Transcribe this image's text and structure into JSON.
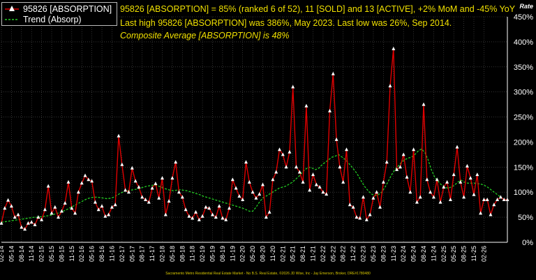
{
  "annotations": {
    "line1": "95826 [ABSORPTION] = 85% (ranked 6 of 52), 11 [SOLD] and 13 [ACTIVE], +2% MoM and -45% YoY",
    "line2": "Last high 95826 [ABSORPTION] was 386%, May 2023. Last low was 26%, Sep 2014.",
    "line3": "Composite Average [ABSORPTION] is 48%"
  },
  "footer": "Sacramento Metro Residential Real Estate Market - No B.S. Real Estate, ©2026 JD Wise, Inc - Jay Emerson, Broker, DRE#1780480",
  "colors": {
    "series": "#e00000",
    "marker": "#ffffff",
    "trend": "#22cc22",
    "text": "#f0e000",
    "axis": "#ffffff",
    "grid": "#555555"
  },
  "chart_data": {
    "type": "line",
    "ylabel": "Rate",
    "ylim": [
      0,
      450
    ],
    "yticks": [
      0,
      50,
      100,
      150,
      200,
      250,
      300,
      350,
      400,
      450
    ],
    "ytick_suffix": "%",
    "grid": true,
    "legend_position": "top-left",
    "x_tick_labels": [
      "02-14",
      "05-14",
      "08-14",
      "11-14",
      "02-15",
      "05-15",
      "08-15",
      "11-15",
      "02-16",
      "05-16",
      "08-16",
      "11-16",
      "02-17",
      "05-17",
      "08-17",
      "11-17",
      "02-18",
      "05-18",
      "08-18",
      "11-18",
      "02-19",
      "05-19",
      "08-19",
      "11-19",
      "02-20",
      "05-20",
      "08-20",
      "11-20",
      "02-21",
      "05-21",
      "08-21",
      "11-21",
      "02-22",
      "05-22",
      "08-22",
      "11-22",
      "02-23",
      "05-23",
      "08-23",
      "11-23",
      "02-24",
      "05-24",
      "08-24",
      "11-24",
      "02-25",
      "05-25",
      "08-25",
      "11-25",
      "02-26"
    ],
    "x_start": "2014-02",
    "series": [
      {
        "name": "95826 [ABSORPTION]",
        "style": "line-triangle",
        "values": [
          38,
          68,
          84,
          72,
          50,
          55,
          30,
          26,
          38,
          40,
          35,
          50,
          45,
          65,
          112,
          58,
          70,
          50,
          62,
          78,
          120,
          68,
          58,
          100,
          118,
          133,
          125,
          122,
          80,
          65,
          72,
          52,
          55,
          70,
          75,
          212,
          155,
          104,
          100,
          148,
          122,
          110,
          90,
          85,
          80,
          108,
          117,
          88,
          128,
          55,
          82,
          128,
          160,
          100,
          90,
          65,
          52,
          48,
          60,
          45,
          52,
          70,
          68,
          55,
          50,
          72,
          48,
          45,
          68,
          125,
          108,
          92,
          85,
          160,
          120,
          100,
          88,
          96,
          115,
          50,
          60,
          125,
          140,
          185,
          175,
          150,
          180,
          310,
          150,
          140,
          120,
          272,
          104,
          135,
          115,
          110,
          100,
          96,
          262,
          336,
          205,
          150,
          120,
          185,
          75,
          70,
          50,
          48,
          90,
          45,
          55,
          88,
          100,
          70,
          120,
          160,
          312,
          386,
          145,
          150,
          175,
          130,
          100,
          185,
          80,
          90,
          275,
          125,
          100,
          90,
          125,
          80,
          110,
          120,
          85,
          135,
          190,
          120,
          90,
          152,
          128,
          95,
          135,
          58,
          85,
          85,
          55,
          75,
          85,
          90,
          85,
          85
        ]
      },
      {
        "name": "Trend (Absorp)",
        "style": "dashed",
        "values": [
          40,
          41,
          42,
          43,
          44,
          45,
          46,
          47,
          48,
          49,
          50,
          50,
          51,
          52,
          53,
          54,
          56,
          58,
          60,
          63,
          66,
          70,
          73,
          77,
          80,
          84,
          87,
          89,
          90,
          90,
          89,
          88,
          87,
          88,
          90,
          94,
          98,
          101,
          103,
          104,
          105,
          106,
          108,
          110,
          112,
          113,
          114,
          113,
          111,
          108,
          106,
          104,
          103,
          104,
          105,
          104,
          103,
          101,
          99,
          97,
          95,
          92,
          90,
          88,
          86,
          84,
          82,
          80,
          78,
          76,
          74,
          72,
          70,
          68,
          65,
          62,
          62,
          70,
          80,
          88,
          92,
          96,
          100,
          104,
          108,
          110,
          112,
          116,
          120,
          126,
          132,
          140,
          146,
          150,
          148,
          145,
          148,
          155,
          160,
          165,
          170,
          172,
          175,
          170,
          165,
          158,
          150,
          142,
          132,
          120,
          110,
          102,
          96,
          93,
          95,
          100,
          110,
          122,
          135,
          145,
          152,
          160,
          165,
          168,
          170,
          175,
          182,
          186,
          180,
          165,
          145,
          130,
          122,
          115,
          110,
          108,
          110,
          114,
          120,
          124,
          120,
          118,
          118,
          118,
          117,
          116,
          114,
          110,
          105,
          100,
          95,
          90,
          85,
          85
        ]
      }
    ]
  }
}
